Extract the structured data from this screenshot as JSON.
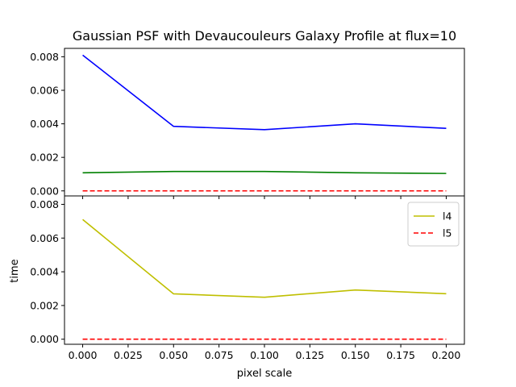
{
  "chart_data": {
    "type": "line",
    "title": "Gaussian PSF with Devaucouleurs Galaxy Profile at flux=10",
    "xlabel": "pixel scale",
    "x": [
      0.0,
      0.05,
      0.1,
      0.15,
      0.2
    ],
    "x_ticks": [
      "0.000",
      "0.025",
      "0.050",
      "0.075",
      "0.100",
      "0.125",
      "0.150",
      "0.175",
      "0.200"
    ],
    "xlim": [
      -0.01,
      0.21
    ],
    "panels": [
      {
        "ylabel": "",
        "ylim": [
          -0.0003,
          0.0085
        ],
        "y_ticks": [
          "0.000",
          "0.002",
          "0.004",
          "0.006",
          "0.008"
        ],
        "legend": false,
        "series": [
          {
            "values": [
              0.0081,
              0.00385,
              0.00365,
              0.004,
              0.00373
            ],
            "color": "#0000ff",
            "style": "solid"
          },
          {
            "values": [
              0.00108,
              0.00116,
              0.00116,
              0.00108,
              0.00104
            ],
            "color": "#008000",
            "style": "solid"
          },
          {
            "values": [
              0.0,
              0.0,
              0.0,
              0.0,
              0.0
            ],
            "color": "#ff0000",
            "style": "dashed"
          }
        ]
      },
      {
        "ylabel": "time",
        "ylim": [
          -0.0003,
          0.0085
        ],
        "y_ticks": [
          "0.000",
          "0.002",
          "0.004",
          "0.006",
          "0.008"
        ],
        "legend": true,
        "legend_position": "top-right",
        "series": [
          {
            "name": "l4",
            "values": [
              0.0071,
              0.00269,
              0.00249,
              0.00292,
              0.0027
            ],
            "color": "#bfbf00",
            "style": "solid"
          },
          {
            "name": "l5",
            "values": [
              0.0,
              0.0,
              0.0,
              0.0,
              0.0
            ],
            "color": "#ff0000",
            "style": "dashed"
          }
        ]
      }
    ]
  }
}
